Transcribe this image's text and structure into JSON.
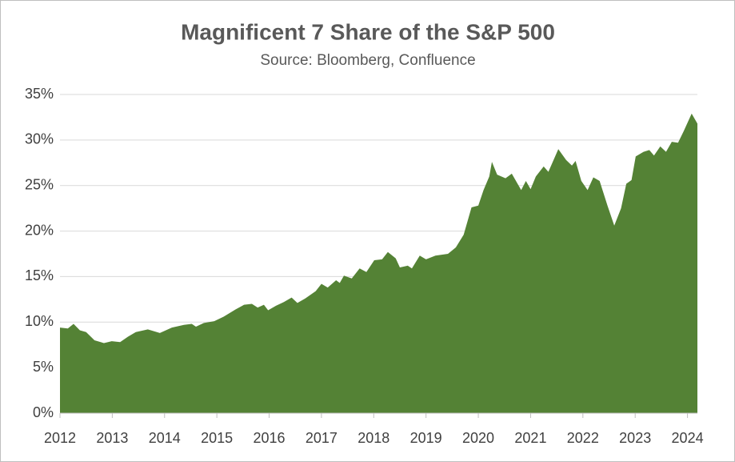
{
  "chart_data": {
    "type": "area",
    "title": "Magnificent 7 Share of the S&P 500",
    "subtitle": "Source: Bloomberg, Confluence",
    "color": "#548235",
    "grid": true,
    "x": [
      2012,
      2012.15,
      2012.26,
      2012.38,
      2012.5,
      2012.66,
      2012.84,
      2012.99,
      2013.15,
      2013.3,
      2013.45,
      2013.68,
      2013.91,
      2014.14,
      2014.37,
      2014.52,
      2014.6,
      2014.75,
      2014.95,
      2015.13,
      2015.36,
      2015.52,
      2015.67,
      2015.78,
      2015.9,
      2015.98,
      2016.13,
      2016.28,
      2016.43,
      2016.54,
      2016.69,
      2016.89,
      2017.0,
      2017.12,
      2017.28,
      2017.35,
      2017.43,
      2017.58,
      2017.73,
      2017.86,
      2018.01,
      2018.16,
      2018.27,
      2018.42,
      2018.5,
      2018.65,
      2018.73,
      2018.88,
      2019.0,
      2019.18,
      2019.42,
      2019.57,
      2019.72,
      2019.87,
      2020.0,
      2020.1,
      2020.21,
      2020.26,
      2020.36,
      2020.52,
      2020.64,
      2020.82,
      2020.91,
      2021.0,
      2021.1,
      2021.25,
      2021.34,
      2021.53,
      2021.68,
      2021.79,
      2021.86,
      2021.97,
      2022.09,
      2022.2,
      2022.32,
      2022.47,
      2022.6,
      2022.73,
      2022.83,
      2022.93,
      2023.01,
      2023.16,
      2023.27,
      2023.36,
      2023.48,
      2023.59,
      2023.7,
      2023.82,
      2023.93,
      2024.08,
      2024.19
    ],
    "values": [
      9.4,
      9.3,
      9.8,
      9.1,
      8.9,
      8.0,
      7.7,
      7.9,
      7.8,
      8.4,
      8.9,
      9.2,
      8.8,
      9.4,
      9.7,
      9.8,
      9.5,
      9.9,
      10.1,
      10.6,
      11.4,
      11.9,
      12.0,
      11.6,
      11.9,
      11.3,
      11.8,
      12.2,
      12.7,
      12.1,
      12.6,
      13.4,
      14.2,
      13.8,
      14.6,
      14.3,
      15.1,
      14.8,
      15.9,
      15.5,
      16.8,
      16.9,
      17.7,
      17.0,
      16.0,
      16.2,
      15.9,
      17.3,
      16.9,
      17.3,
      17.5,
      18.2,
      19.6,
      22.6,
      22.8,
      24.5,
      26.0,
      27.6,
      26.2,
      25.8,
      26.3,
      24.5,
      25.5,
      24.6,
      26.0,
      27.1,
      26.5,
      29.0,
      27.8,
      27.2,
      27.7,
      25.5,
      24.5,
      25.9,
      25.5,
      22.8,
      20.6,
      22.5,
      25.2,
      25.6,
      28.2,
      28.7,
      28.9,
      28.3,
      29.3,
      28.7,
      29.8,
      29.7,
      31.0,
      32.9,
      31.8
    ],
    "xlim": [
      2012,
      2024.19
    ],
    "xticks": [
      2012,
      2013,
      2014,
      2015,
      2016,
      2017,
      2018,
      2019,
      2020,
      2021,
      2022,
      2023,
      2024
    ],
    "ylim": [
      0,
      35
    ],
    "yticks": [
      {
        "value": 0,
        "label": "0%"
      },
      {
        "value": 5,
        "label": "5%"
      },
      {
        "value": 10,
        "label": "10%"
      },
      {
        "value": 15,
        "label": "15%"
      },
      {
        "value": 20,
        "label": "20%"
      },
      {
        "value": 25,
        "label": "25%"
      },
      {
        "value": 30,
        "label": "30%"
      },
      {
        "value": 35,
        "label": "35%"
      }
    ]
  }
}
